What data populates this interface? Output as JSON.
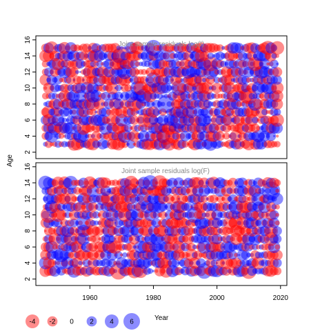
{
  "chart_data": [
    {
      "type": "scatter",
      "title": "Joint sample residuals log(I)",
      "ylabel": "Age",
      "xlim": [
        1943,
        2022
      ],
      "ylim": [
        1.2,
        16.5
      ],
      "y_ticks": [
        2,
        4,
        6,
        8,
        10,
        12,
        14,
        16
      ],
      "x_range": [
        1946,
        2019
      ],
      "y_range": [
        3,
        15
      ],
      "seed": 17,
      "color_positive": "#0000ff",
      "color_negative": "#ff0000"
    },
    {
      "type": "scatter",
      "title": "Joint sample residuals log(F)",
      "xlabel": "Year",
      "xlim": [
        1943,
        2022
      ],
      "ylim": [
        1.2,
        16.5
      ],
      "x_ticks": [
        1960,
        1980,
        2000,
        2020
      ],
      "y_ticks": [
        2,
        4,
        6,
        8,
        10,
        12,
        14,
        16
      ],
      "x_range": [
        1946,
        2019
      ],
      "y_range": [
        3,
        14
      ],
      "seed": 91,
      "color_positive": "#0000ff",
      "color_negative": "#ff0000"
    }
  ],
  "shared": {
    "ylabel": "Age",
    "xlabel": "Year"
  },
  "legend": [
    {
      "label": "-4",
      "value": -4
    },
    {
      "label": "-2",
      "value": -2
    },
    {
      "label": "0",
      "value": 0
    },
    {
      "label": "2",
      "value": 2
    },
    {
      "label": "4",
      "value": 4
    },
    {
      "label": "6",
      "value": 6
    }
  ]
}
